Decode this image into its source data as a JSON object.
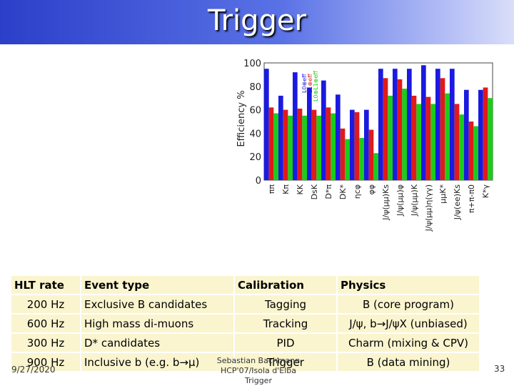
{
  "slide": {
    "title": "Trigger",
    "page_number": "33"
  },
  "footer": {
    "date": "9/27/2020",
    "author": "Sebastian Bachmann",
    "event": "HCP'07/Isola d'Elba",
    "title": "Trigger"
  },
  "colors": {
    "l0": "#1a1ae0",
    "l1": "#e01a1a",
    "hlt": "#1acd1a"
  },
  "chart_data": {
    "type": "bar",
    "ylabel": "Efficiency %",
    "ylim": [
      0,
      100
    ],
    "yticks": [
      0,
      20,
      40,
      60,
      80,
      100
    ],
    "legend": [
      "L0⊕eff",
      "L1⊕eff",
      "L0⊕L1⊕eff"
    ],
    "categories": [
      "ππ",
      "Kπ",
      "KK",
      "DsK",
      "D*π",
      "DK*",
      "ηcφ",
      "φφ",
      "J/ψ(μμ)Ks",
      "J/ψ(μμ)φ",
      "J/ψ(μμ)K",
      "J/ψ(μμ)η(γγ)",
      "μμK*",
      "J/ψ(ee)Ks",
      "π+π-π0",
      "K*γ"
    ],
    "series": [
      {
        "name": "L0",
        "values": [
          95,
          72,
          92,
          79,
          85,
          73,
          60,
          60,
          95,
          95,
          95,
          98,
          95,
          95,
          77,
          77
        ]
      },
      {
        "name": "L1",
        "values": [
          62,
          60,
          61,
          60,
          62,
          44,
          58,
          43,
          87,
          86,
          72,
          71,
          87,
          65,
          50,
          79
        ]
      },
      {
        "name": "HLT",
        "values": [
          57,
          55,
          55,
          55,
          57,
          35,
          36,
          23,
          72,
          78,
          65,
          65,
          74,
          56,
          46,
          70
        ]
      }
    ]
  },
  "table": {
    "headers": [
      "HLT rate",
      "Event type",
      "Calibration",
      "Physics"
    ],
    "rows": [
      [
        "200 Hz",
        "Exclusive B candidates",
        "Tagging",
        "B (core program)"
      ],
      [
        "600 Hz",
        "High mass di-muons",
        "Tracking",
        "J/ψ, b→J/ψX (unbiased)"
      ],
      [
        "300 Hz",
        "D* candidates",
        "PID",
        "Charm (mixing & CPV)"
      ],
      [
        "900 Hz",
        "Inclusive b (e.g. b→μ)",
        "Trigger",
        "B (data mining)"
      ]
    ]
  }
}
